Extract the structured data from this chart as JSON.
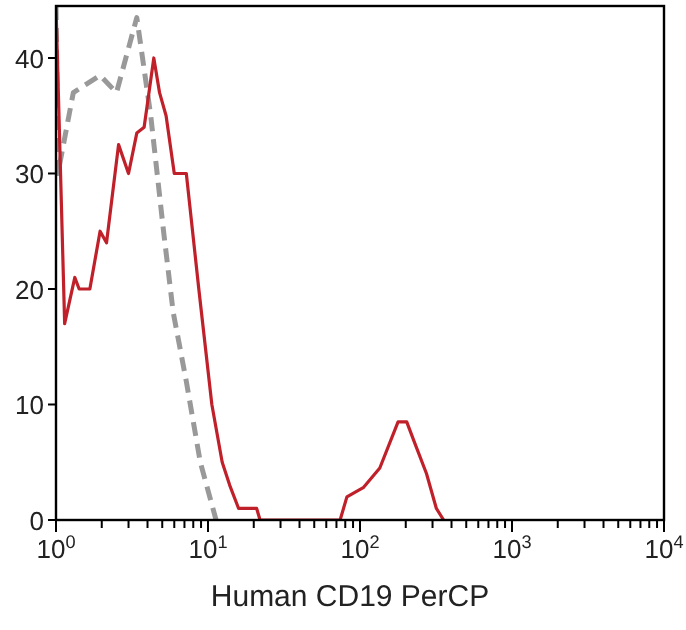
{
  "chart_data": {
    "type": "line",
    "xlabel": "Human CD19 PerCP",
    "log": "x",
    "xlim": [
      1,
      10000
    ],
    "ylim": [
      0,
      44.5
    ],
    "xticks": [
      {
        "value": 1,
        "label": "10$^{0}$"
      },
      {
        "value": 2,
        "label": null
      },
      {
        "value": 3,
        "label": null
      },
      {
        "value": 4,
        "label": null
      },
      {
        "value": 5,
        "label": null
      },
      {
        "value": 6,
        "label": null
      },
      {
        "value": 7,
        "label": null
      },
      {
        "value": 8,
        "label": null
      },
      {
        "value": 9,
        "label": null
      },
      {
        "value": 10,
        "label": "10$^{1}$"
      },
      {
        "value": 20,
        "label": null
      },
      {
        "value": 30,
        "label": null
      },
      {
        "value": 40,
        "label": null
      },
      {
        "value": 50,
        "label": null
      },
      {
        "value": 60,
        "label": null
      },
      {
        "value": 70,
        "label": null
      },
      {
        "value": 80,
        "label": null
      },
      {
        "value": 90,
        "label": null
      },
      {
        "value": 100,
        "label": "10$^{2}$"
      },
      {
        "value": 200,
        "label": null
      },
      {
        "value": 300,
        "label": null
      },
      {
        "value": 400,
        "label": null
      },
      {
        "value": 500,
        "label": null
      },
      {
        "value": 600,
        "label": null
      },
      {
        "value": 700,
        "label": null
      },
      {
        "value": 800,
        "label": null
      },
      {
        "value": 900,
        "label": null
      },
      {
        "value": 1000,
        "label": "10$^{3}$"
      },
      {
        "value": 2000,
        "label": null
      },
      {
        "value": 3000,
        "label": null
      },
      {
        "value": 4000,
        "label": null
      },
      {
        "value": 5000,
        "label": null
      },
      {
        "value": 6000,
        "label": null
      },
      {
        "value": 7000,
        "label": null
      },
      {
        "value": 8000,
        "label": null
      },
      {
        "value": 9000,
        "label": null
      },
      {
        "value": 10000,
        "label": "10$^{4}$"
      }
    ],
    "yticks": [
      0,
      10,
      20,
      30,
      40
    ],
    "grid": false,
    "series": [
      {
        "color": "#999999",
        "line_style": "dashed",
        "x": [
          1,
          1.03,
          1.3,
          1.95,
          2.5,
          3.4,
          4.2,
          5.1,
          5.9,
          7.2,
          8.9,
          11.3
        ],
        "values": [
          44.5,
          30,
          37,
          38.5,
          37,
          43.5,
          35,
          25,
          18,
          12,
          5,
          0
        ]
      },
      {
        "color": "#c0202a",
        "line_style": "solid",
        "x": [
          1,
          1.14,
          1.33,
          1.42,
          1.67,
          1.95,
          2.15,
          2.58,
          3.0,
          3.4,
          3.8,
          4.4,
          4.8,
          5.3,
          6.0,
          7.2,
          8.7,
          10.6,
          12.4,
          13.9,
          15.9,
          20.9,
          22,
          74,
          82,
          105,
          135,
          178,
          203,
          224,
          274,
          318,
          355
        ],
        "values": [
          44.5,
          17,
          21,
          20,
          20,
          25,
          24,
          32.5,
          30,
          33.5,
          34,
          40,
          37,
          35,
          30,
          30,
          20,
          10,
          5,
          3,
          1,
          1,
          0,
          0,
          2,
          2.8,
          4.5,
          8.5,
          8.5,
          7,
          4,
          1,
          0
        ]
      }
    ]
  }
}
